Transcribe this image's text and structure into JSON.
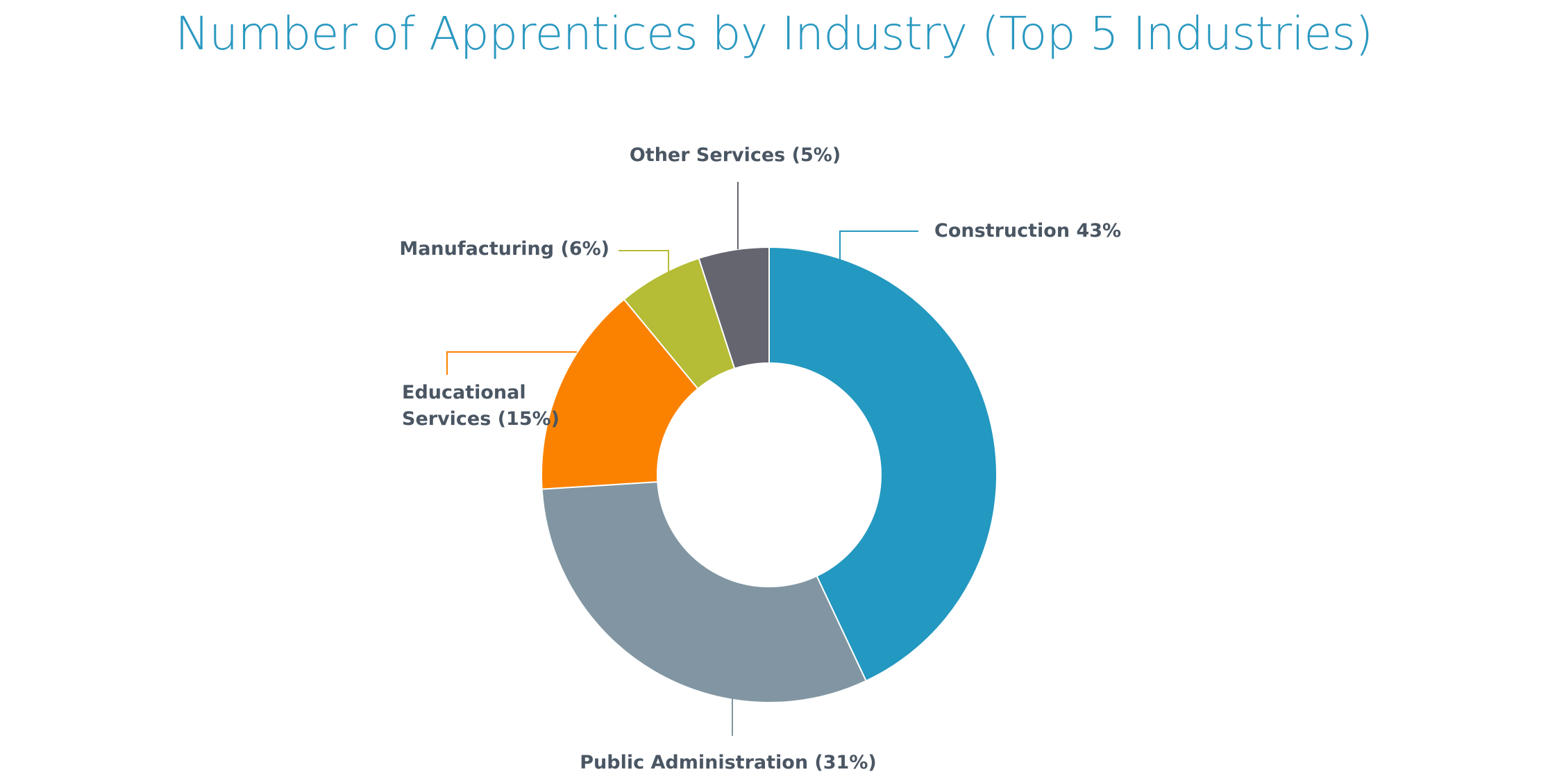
{
  "chart_data": {
    "type": "donut",
    "title": "Number of Apprentices by Industry (Top 5 Industries)",
    "values": [
      43,
      31,
      15,
      6,
      5
    ],
    "value_labels": [
      "Construction 43%",
      "Public Administration (31%)",
      "Educational Services (15%)",
      "Manufacturing (6%)",
      "Other Services (5%)"
    ],
    "colors": [
      "#2398c0",
      "#8196a2",
      "#fb8200",
      "#b5bc35",
      "#656570"
    ]
  }
}
